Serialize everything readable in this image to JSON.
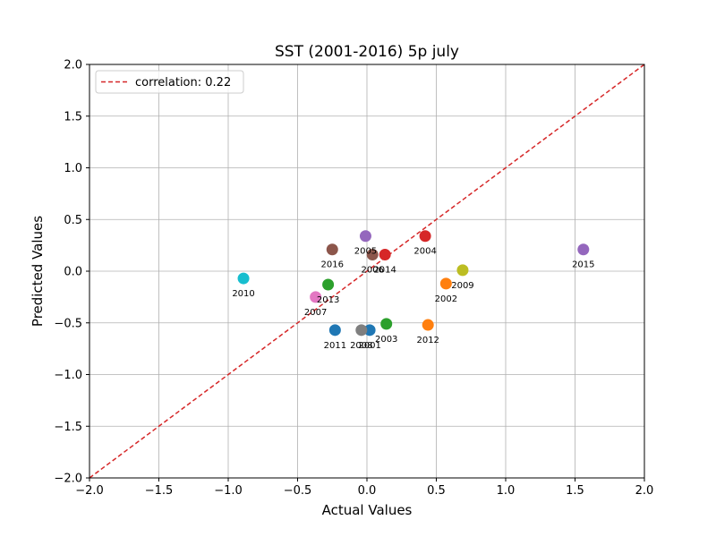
{
  "chart_data": {
    "type": "scatter",
    "title": "SST (2001-2016) 5p july",
    "xlabel": "Actual Values",
    "ylabel": "Predicted Values",
    "xlim": [
      -2.0,
      2.0
    ],
    "ylim": [
      -2.0,
      2.0
    ],
    "xticks": [
      -2.0,
      -1.5,
      -1.0,
      -0.5,
      0.0,
      0.5,
      1.0,
      1.5,
      2.0
    ],
    "yticks": [
      -2.0,
      -1.5,
      -1.0,
      -0.5,
      0.0,
      0.5,
      1.0,
      1.5,
      2.0
    ],
    "xtick_labels": [
      "−2.0",
      "−1.5",
      "−1.0",
      "−0.5",
      "0.0",
      "0.5",
      "1.0",
      "1.5",
      "2.0"
    ],
    "ytick_labels": [
      "−2.0",
      "−1.5",
      "−1.0",
      "−0.5",
      "0.0",
      "0.5",
      "1.0",
      "1.5",
      "2.0"
    ],
    "grid": true,
    "legend": {
      "position": "top-left",
      "entries": [
        "correlation: 0.22"
      ]
    },
    "reference_line": {
      "label": "correlation: 0.22",
      "style": "dashed",
      "color": "#d62728",
      "from": [
        -2.0,
        -2.0
      ],
      "to": [
        2.0,
        2.0
      ]
    },
    "points": [
      {
        "label": "2001",
        "x": 0.02,
        "y": -0.57,
        "color": "#1f77b4"
      },
      {
        "label": "2002",
        "x": 0.57,
        "y": -0.12,
        "color": "#ff7f0e"
      },
      {
        "label": "2003",
        "x": 0.14,
        "y": -0.51,
        "color": "#2ca02c"
      },
      {
        "label": "2004",
        "x": 0.42,
        "y": 0.34,
        "color": "#d62728"
      },
      {
        "label": "2005",
        "x": -0.01,
        "y": 0.34,
        "color": "#9467bd"
      },
      {
        "label": "2006",
        "x": 0.04,
        "y": 0.16,
        "color": "#8c564b"
      },
      {
        "label": "2007",
        "x": -0.37,
        "y": -0.25,
        "color": "#e377c2"
      },
      {
        "label": "2008",
        "x": -0.04,
        "y": -0.57,
        "color": "#7f7f7f"
      },
      {
        "label": "2009",
        "x": 0.69,
        "y": 0.01,
        "color": "#bcbd22"
      },
      {
        "label": "2010",
        "x": -0.89,
        "y": -0.07,
        "color": "#17becf"
      },
      {
        "label": "2011",
        "x": -0.23,
        "y": -0.57,
        "color": "#1f77b4"
      },
      {
        "label": "2012",
        "x": 0.44,
        "y": -0.52,
        "color": "#ff7f0e"
      },
      {
        "label": "2013",
        "x": -0.28,
        "y": -0.13,
        "color": "#2ca02c"
      },
      {
        "label": "2014",
        "x": 0.13,
        "y": 0.16,
        "color": "#d62728"
      },
      {
        "label": "2015",
        "x": 1.56,
        "y": 0.21,
        "color": "#9467bd"
      },
      {
        "label": "2016",
        "x": -0.25,
        "y": 0.21,
        "color": "#8c564b"
      }
    ]
  }
}
